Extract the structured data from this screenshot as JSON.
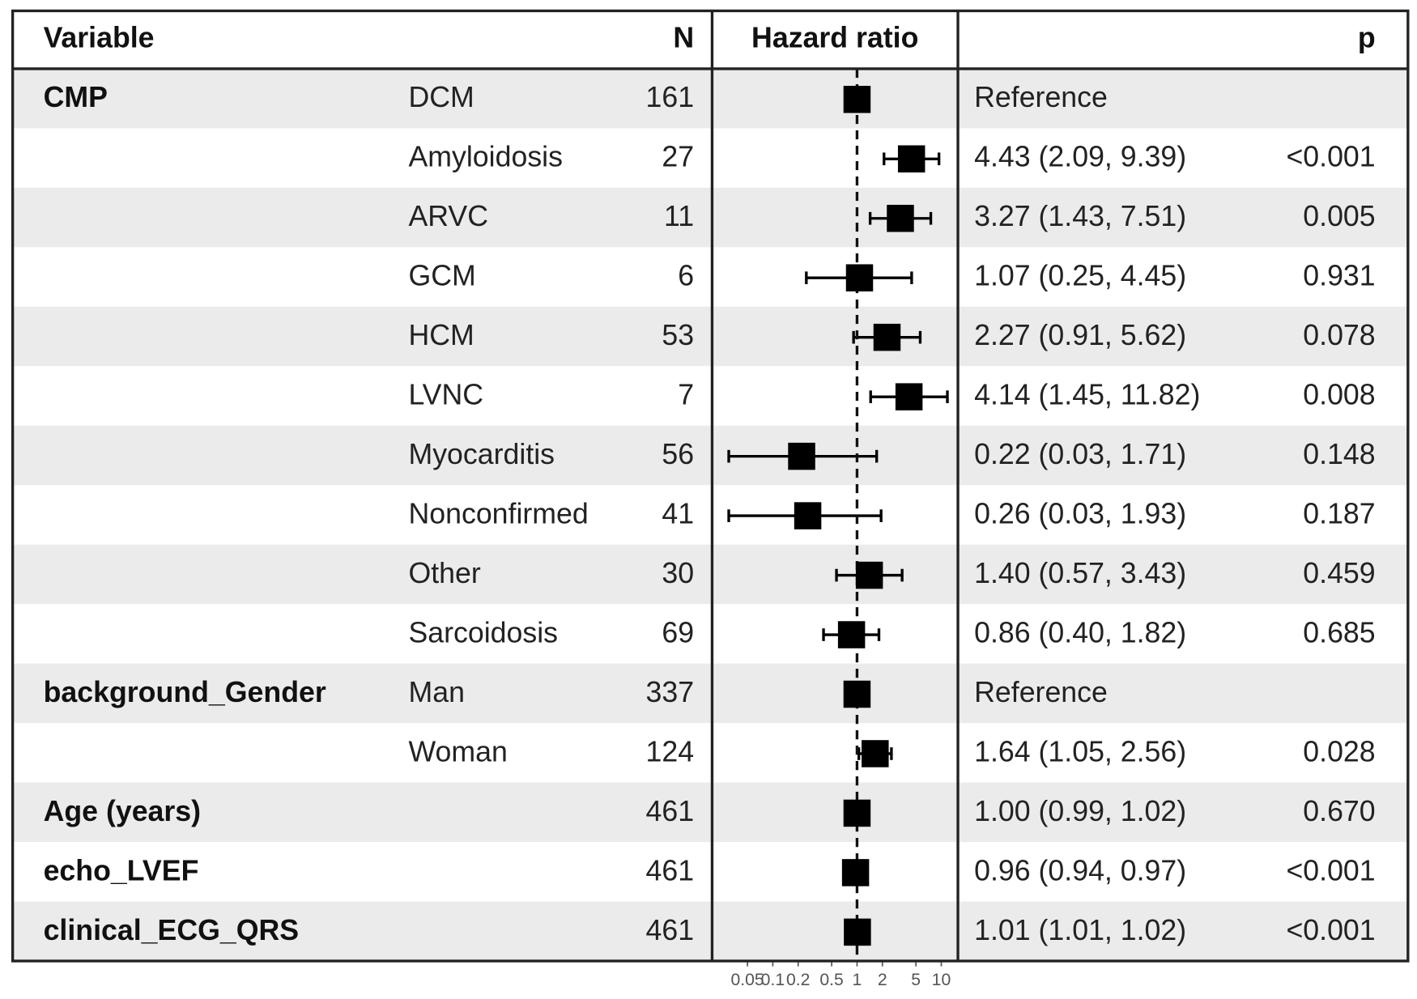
{
  "chart_data": {
    "type": "forest",
    "columns": {
      "variable": "Variable",
      "n": "N",
      "hr": "Hazard ratio",
      "p": "p"
    },
    "rows": [
      {
        "variable": "CMP",
        "level": "DCM",
        "n": 161,
        "hr": 1,
        "estimate": "Reference"
      },
      {
        "level": "Amyloidosis",
        "n": 27,
        "hr": 4.43,
        "lower": 2.09,
        "upper": 9.39,
        "estimate": "4.43 (2.09, 9.39)",
        "p": "<0.001"
      },
      {
        "level": "ARVC",
        "n": 11,
        "hr": 3.27,
        "lower": 1.43,
        "upper": 7.51,
        "estimate": "3.27 (1.43, 7.51)",
        "p": "0.005"
      },
      {
        "level": "GCM",
        "n": 6,
        "hr": 1.07,
        "lower": 0.25,
        "upper": 4.45,
        "estimate": "1.07 (0.25, 4.45)",
        "p": "0.931"
      },
      {
        "level": "HCM",
        "n": 53,
        "hr": 2.27,
        "lower": 0.91,
        "upper": 5.62,
        "estimate": "2.27 (0.91, 5.62)",
        "p": "0.078"
      },
      {
        "level": "LVNC",
        "n": 7,
        "hr": 4.14,
        "lower": 1.45,
        "upper": 11.82,
        "estimate": "4.14 (1.45, 11.82)",
        "p": "0.008"
      },
      {
        "level": "Myocarditis",
        "n": 56,
        "hr": 0.22,
        "lower": 0.03,
        "upper": 1.71,
        "estimate": "0.22 (0.03, 1.71)",
        "p": "0.148"
      },
      {
        "level": "Nonconfirmed",
        "n": 41,
        "hr": 0.26,
        "lower": 0.03,
        "upper": 1.93,
        "estimate": "0.26 (0.03, 1.93)",
        "p": "0.187"
      },
      {
        "level": "Other",
        "n": 30,
        "hr": 1.4,
        "lower": 0.57,
        "upper": 3.43,
        "estimate": "1.40 (0.57, 3.43)",
        "p": "0.459"
      },
      {
        "level": "Sarcoidosis",
        "n": 69,
        "hr": 0.86,
        "lower": 0.4,
        "upper": 1.82,
        "estimate": "0.86 (0.40, 1.82)",
        "p": "0.685"
      },
      {
        "variable": "background_Gender",
        "level": "Man",
        "n": 337,
        "hr": 1,
        "estimate": "Reference"
      },
      {
        "level": "Woman",
        "n": 124,
        "hr": 1.64,
        "lower": 1.05,
        "upper": 2.56,
        "estimate": "1.64 (1.05, 2.56)",
        "p": "0.028"
      },
      {
        "variable": "Age (years)",
        "n": 461,
        "hr": 1.0,
        "lower": 0.99,
        "upper": 1.02,
        "estimate": "1.00 (0.99, 1.02)",
        "p": "0.670"
      },
      {
        "variable": "echo_LVEF",
        "n": 461,
        "hr": 0.96,
        "lower": 0.94,
        "upper": 0.97,
        "estimate": "0.96 (0.94, 0.97)",
        "p": "<0.001"
      },
      {
        "variable": "clinical_ECG_QRS",
        "n": 461,
        "hr": 1.01,
        "lower": 1.01,
        "upper": 1.02,
        "estimate": "1.01 (1.01, 1.02)",
        "p": "<0.001"
      }
    ],
    "xlim": [
      0.02,
      15
    ],
    "xticks": [
      0.05,
      0.1,
      0.2,
      0.5,
      1,
      2,
      5,
      10
    ],
    "log_x": true,
    "reference_line": 1,
    "color": "#000000",
    "stripe_color": "#ebebeb"
  }
}
